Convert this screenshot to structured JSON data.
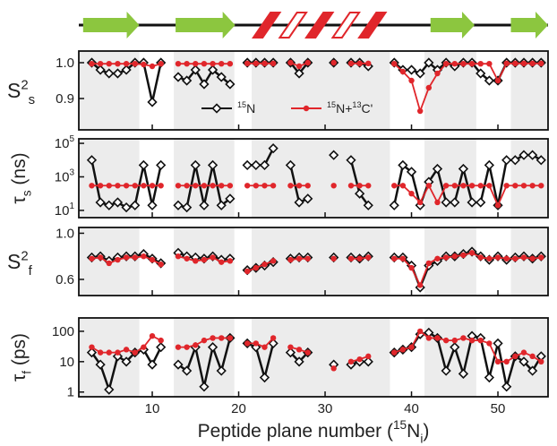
{
  "structure": [
    {
      "type": "strand",
      "start": 2,
      "end": 8.5
    },
    {
      "type": "strand",
      "start": 12.7,
      "end": 19.6
    },
    {
      "type": "helix",
      "start": 21.7,
      "end": 37
    },
    {
      "type": "strand",
      "start": 42.2,
      "end": 47.3
    },
    {
      "type": "strand",
      "start": 51.5,
      "end": 55.8
    }
  ],
  "shading": [
    [
      1.5,
      8.5
    ],
    [
      12.5,
      19.5
    ],
    [
      21.5,
      37.5
    ],
    [
      41.5,
      47.5
    ],
    [
      51.5,
      55.8
    ]
  ],
  "chart_data": [
    {
      "type": "line",
      "ylabel": [
        {
          "text": "S"
        },
        {
          "text": "2",
          "script": "sup"
        },
        {
          "text": "s",
          "script": "sub"
        }
      ],
      "ylabel_rotate": false,
      "x": [
        3,
        4,
        5,
        6,
        7,
        8,
        9,
        10,
        11,
        12,
        13,
        14,
        15,
        16,
        17,
        18,
        19,
        20,
        21,
        22,
        23,
        24,
        25,
        26,
        27,
        28,
        29,
        30,
        31,
        32,
        33,
        34,
        35,
        36,
        37,
        38,
        39,
        40,
        41,
        42,
        43,
        44,
        45,
        46,
        47,
        48,
        49,
        50,
        51,
        52,
        53,
        54,
        55
      ],
      "xlim": [
        1.5,
        55.8
      ],
      "ylim": [
        0.8125,
        1.0325
      ],
      "log": false,
      "yticks": [
        {
          "value": 0.9,
          "label": "0.9"
        },
        {
          "value": 1,
          "label": "1.0"
        }
      ],
      "series": [
        {
          "name": [
            {
              "text": "15",
              "script": "sup"
            },
            {
              "text": "N"
            }
          ],
          "color": "#111111",
          "marker": "diamond",
          "values": [
            1.0,
            0.98,
            0.97,
            0.97,
            0.98,
            1.0,
            1.0,
            0.89,
            1.0,
            null,
            0.96,
            0.95,
            0.98,
            0.94,
            0.98,
            0.96,
            0.94,
            null,
            1.0,
            1.0,
            1.0,
            1.0,
            null,
            1.0,
            0.97,
            1.0,
            null,
            null,
            1.0,
            null,
            1.0,
            1.0,
            0.99,
            null,
            null,
            1.0,
            0.98,
            0.98,
            0.97,
            1.0,
            0.98,
            1.0,
            0.99,
            1.0,
            1.0,
            0.97,
            0.95,
            0.95,
            1.0,
            1.0,
            1.0,
            1.0,
            1.0
          ]
        },
        {
          "name": [
            {
              "text": "15",
              "script": "sup"
            },
            {
              "text": "N+"
            },
            {
              "text": "13",
              "script": "sup"
            },
            {
              "text": "C'"
            }
          ],
          "color": "#e0262b",
          "marker": "circle",
          "values": [
            0.997,
            0.997,
            0.997,
            0.997,
            0.997,
            0.997,
            0.995,
            0.99,
            0.997,
            null,
            0.997,
            0.997,
            0.997,
            0.997,
            0.997,
            0.997,
            0.997,
            null,
            0.998,
            0.998,
            0.998,
            0.998,
            null,
            1.0,
            0.99,
            1.0,
            null,
            null,
            1.0,
            null,
            0.998,
            0.998,
            0.998,
            null,
            null,
            0.997,
            0.975,
            0.95,
            0.865,
            0.93,
            0.97,
            0.997,
            0.997,
            0.997,
            0.997,
            0.997,
            0.997,
            0.95,
            0.998,
            0.998,
            0.998,
            0.998,
            0.998
          ]
        }
      ]
    },
    {
      "type": "line",
      "ylabel": [
        {
          "text": "τ"
        },
        {
          "text": "s",
          "script": "sub"
        },
        {
          "text": " (ns)"
        }
      ],
      "ylabel_rotate": true,
      "x": [
        3,
        4,
        5,
        6,
        7,
        8,
        9,
        10,
        11,
        12,
        13,
        14,
        15,
        16,
        17,
        18,
        19,
        20,
        21,
        22,
        23,
        24,
        25,
        26,
        27,
        28,
        29,
        30,
        31,
        32,
        33,
        34,
        35,
        36,
        37,
        38,
        39,
        40,
        41,
        42,
        43,
        44,
        45,
        46,
        47,
        48,
        49,
        50,
        51,
        52,
        53,
        54,
        55
      ],
      "xlim": [
        1.5,
        55.8
      ],
      "ylim": [
        3.7,
        186000
      ],
      "log": true,
      "yticks": [
        {
          "value": 10,
          "label": "10",
          "sup": "1"
        },
        {
          "value": 1000,
          "label": "10",
          "sup": "3"
        },
        {
          "value": 100000,
          "label": "10",
          "sup": "5"
        }
      ],
      "series": [
        {
          "color": "#111111",
          "marker": "diamond",
          "values": [
            10000,
            30,
            20,
            30,
            15,
            20,
            5000,
            20,
            5000,
            null,
            20,
            15,
            5000,
            20,
            5000,
            20,
            50,
            null,
            5000,
            5000,
            5000,
            50000,
            null,
            5000,
            30,
            50,
            null,
            null,
            20000,
            null,
            10000,
            100,
            20,
            null,
            null,
            20,
            5000,
            2000,
            20,
            500,
            3000,
            30,
            30,
            3000,
            30,
            30,
            5000,
            20,
            10000,
            10000,
            20000,
            20000,
            10000
          ]
        },
        {
          "color": "#e0262b",
          "marker": "circle",
          "values": [
            300,
            300,
            300,
            300,
            300,
            300,
            300,
            300,
            300,
            null,
            300,
            300,
            300,
            300,
            300,
            300,
            300,
            null,
            300,
            300,
            300,
            300,
            null,
            300,
            300,
            300,
            null,
            null,
            300,
            null,
            300,
            300,
            300,
            null,
            null,
            300,
            300,
            100,
            30,
            300,
            30,
            300,
            300,
            300,
            300,
            300,
            300,
            20,
            300,
            300,
            300,
            300,
            300
          ]
        }
      ]
    },
    {
      "type": "line",
      "ylabel": [
        {
          "text": "S"
        },
        {
          "text": "2",
          "script": "sup"
        },
        {
          "text": "f",
          "script": "sub"
        }
      ],
      "ylabel_rotate": false,
      "x": [
        3,
        4,
        5,
        6,
        7,
        8,
        9,
        10,
        11,
        12,
        13,
        14,
        15,
        16,
        17,
        18,
        19,
        20,
        21,
        22,
        23,
        24,
        25,
        26,
        27,
        28,
        29,
        30,
        31,
        32,
        33,
        34,
        35,
        36,
        37,
        38,
        39,
        40,
        41,
        42,
        43,
        44,
        45,
        46,
        47,
        48,
        49,
        50,
        51,
        52,
        53,
        54,
        55
      ],
      "xlim": [
        1.5,
        55.8
      ],
      "ylim": [
        0.46,
        1.05
      ],
      "log": false,
      "yticks": [
        {
          "value": 0.6,
          "label": "0.6"
        },
        {
          "value": 1,
          "label": "1.0"
        }
      ],
      "series": [
        {
          "color": "#111111",
          "marker": "diamond",
          "values": [
            0.79,
            0.8,
            0.76,
            0.79,
            0.8,
            0.8,
            0.82,
            0.78,
            0.74,
            null,
            0.83,
            0.8,
            0.79,
            0.78,
            0.8,
            0.77,
            0.78,
            null,
            0.68,
            0.7,
            0.72,
            0.75,
            null,
            0.78,
            0.79,
            0.79,
            null,
            null,
            0.79,
            null,
            0.79,
            0.78,
            0.8,
            null,
            null,
            0.79,
            0.79,
            0.72,
            0.53,
            0.72,
            0.76,
            0.8,
            0.8,
            0.82,
            0.84,
            0.8,
            0.77,
            0.8,
            0.77,
            0.79,
            0.8,
            0.78,
            0.8
          ]
        },
        {
          "color": "#e0262b",
          "marker": "circle",
          "values": [
            0.78,
            0.79,
            0.74,
            0.77,
            0.79,
            0.79,
            0.8,
            0.77,
            0.73,
            null,
            0.8,
            0.78,
            0.76,
            0.77,
            0.79,
            0.75,
            0.76,
            null,
            0.67,
            0.7,
            0.73,
            0.76,
            null,
            0.77,
            0.78,
            0.78,
            null,
            null,
            0.78,
            null,
            0.78,
            0.78,
            0.79,
            null,
            null,
            0.78,
            0.78,
            0.7,
            0.55,
            0.74,
            0.78,
            0.79,
            0.8,
            0.81,
            0.83,
            0.79,
            0.78,
            0.79,
            0.78,
            0.78,
            0.79,
            0.78,
            0.79
          ]
        }
      ]
    },
    {
      "type": "line",
      "ylabel": [
        {
          "text": "τ"
        },
        {
          "text": "f",
          "script": "sub"
        },
        {
          "text": " (ps)"
        }
      ],
      "ylabel_rotate": true,
      "xlabel": [
        {
          "text": "Peptide plane number ("
        },
        {
          "text": "15",
          "script": "sup"
        },
        {
          "text": "N"
        },
        {
          "text": "i",
          "script": "sub"
        },
        {
          "text": ")"
        }
      ],
      "x": [
        3,
        4,
        5,
        6,
        7,
        8,
        9,
        10,
        11,
        12,
        13,
        14,
        15,
        16,
        17,
        18,
        19,
        20,
        21,
        22,
        23,
        24,
        25,
        26,
        27,
        28,
        29,
        30,
        31,
        32,
        33,
        34,
        35,
        36,
        37,
        38,
        39,
        40,
        41,
        42,
        43,
        44,
        45,
        46,
        47,
        48,
        49,
        50,
        51,
        52,
        53,
        54,
        55
      ],
      "xlim": [
        1.5,
        55.8
      ],
      "xticks": [
        10,
        20,
        30,
        40,
        50
      ],
      "ylim": [
        0.7,
        275
      ],
      "log": true,
      "yticks": [
        1,
        10,
        100
      ],
      "series": [
        {
          "color": "#111111",
          "marker": "diamond",
          "values": [
            20,
            8,
            1.2,
            15,
            10,
            20,
            25,
            8,
            30,
            null,
            8,
            5,
            30,
            1.5,
            30,
            5,
            60,
            null,
            40,
            30,
            3,
            40,
            null,
            20,
            10,
            20,
            null,
            null,
            8,
            null,
            8,
            10,
            10,
            null,
            null,
            20,
            25,
            30,
            80,
            90,
            60,
            5,
            30,
            4,
            70,
            60,
            3,
            40,
            1.5,
            15,
            10,
            5,
            15
          ]
        },
        {
          "color": "#e0262b",
          "marker": "circle",
          "values": [
            30,
            20,
            20,
            20,
            25,
            20,
            30,
            70,
            50,
            null,
            30,
            30,
            35,
            50,
            60,
            60,
            60,
            null,
            40,
            40,
            30,
            60,
            null,
            30,
            25,
            20,
            null,
            null,
            6,
            null,
            10,
            12,
            15,
            null,
            null,
            20,
            25,
            30,
            100,
            60,
            60,
            50,
            50,
            60,
            50,
            50,
            40,
            10,
            10,
            15,
            20,
            15,
            10
          ]
        }
      ]
    }
  ]
}
